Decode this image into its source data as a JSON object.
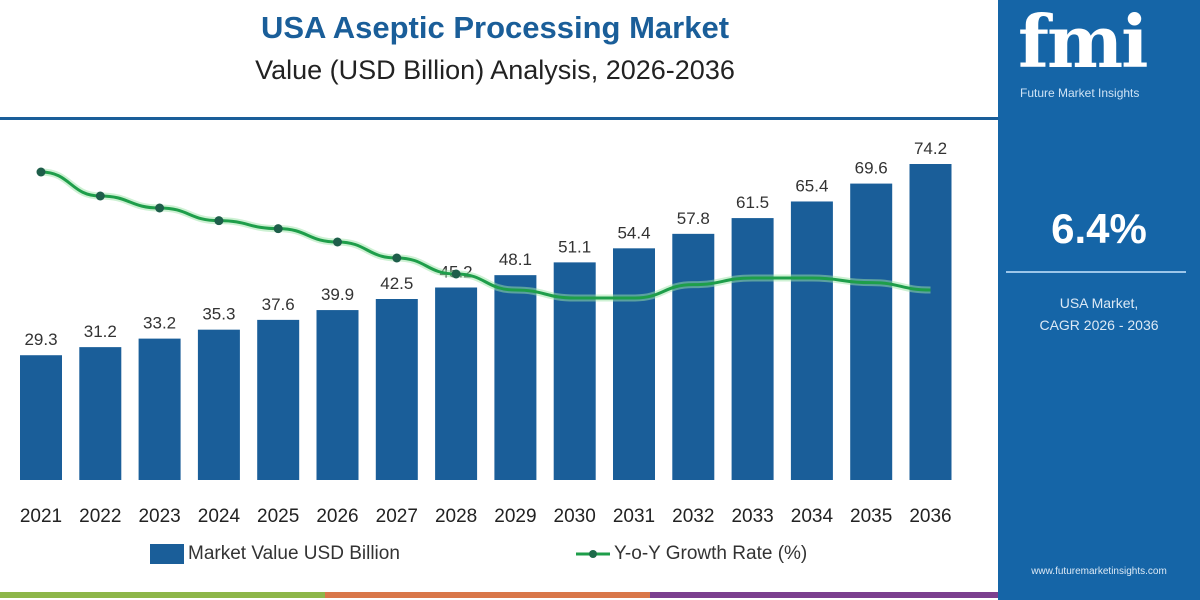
{
  "chart_data": {
    "type": "bar",
    "title": "USA Aseptic Processing Market",
    "subtitle": "Value (USD Billion) Analysis, 2026-2036",
    "categories": [
      "2021",
      "2022",
      "2023",
      "2024",
      "2025",
      "2026",
      "2027",
      "2028",
      "2029",
      "2030",
      "2031",
      "2032",
      "2033",
      "2034",
      "2035",
      "2036"
    ],
    "series": [
      {
        "name": "Market Value USD Billion",
        "type": "bar",
        "color": "#1a5e99",
        "values": [
          29.3,
          31.2,
          33.2,
          35.3,
          37.6,
          39.9,
          42.5,
          45.2,
          48.1,
          51.1,
          54.4,
          57.8,
          61.5,
          65.4,
          69.6,
          74.2
        ]
      },
      {
        "name": "Y-o-Y Growth Rate (%)",
        "type": "line",
        "color": "#1e9e4a",
        "estimated": true,
        "values": [
          7.5,
          7.14,
          6.96,
          6.77,
          6.65,
          6.45,
          6.21,
          5.97,
          5.73,
          5.61,
          5.61,
          5.81,
          5.91,
          5.91,
          5.84,
          5.73
        ]
      }
    ],
    "ylim": [
      0,
      80
    ],
    "grid": false,
    "legend": "bottom"
  },
  "panel": {
    "logo_text": "fmi",
    "logo_subtitle": "Future Market Insights",
    "cagr_value": "6.4%",
    "cagr_label_1": "USA Market,",
    "cagr_label_2": "CAGR 2026 - 2036",
    "website": "www.futuremarketinsights.com"
  },
  "colors": {
    "brand": "#1565a7",
    "bar": "#1a5e99",
    "line": "#1e9e4a",
    "stripe": [
      "#8db64a",
      "#d9774a",
      "#7b3f8f"
    ]
  }
}
